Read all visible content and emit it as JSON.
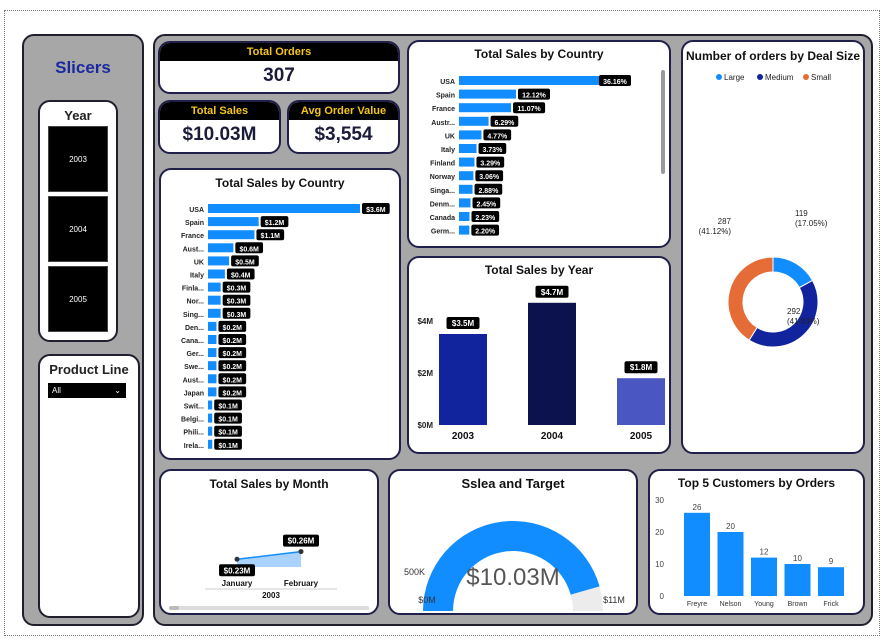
{
  "slicers": {
    "title": "Slicers",
    "year": {
      "title": "Year",
      "options": [
        "2003",
        "2004",
        "2005"
      ]
    },
    "product_line": {
      "title": "Product Line",
      "selected": "All"
    }
  },
  "kpis": {
    "total_orders": {
      "label": "Total Orders",
      "value": "307"
    },
    "total_sales": {
      "label": "Total Sales",
      "value": "$10.03M"
    },
    "avg_order_value": {
      "label": "Avg Order Value",
      "value": "$3,554"
    }
  },
  "colors": {
    "bar_blue": "#118dff",
    "navy": "#12239e",
    "dark_navy": "#0b124d",
    "orange": "#e66c37",
    "kpi_gold": "#f5c518"
  },
  "chart_data": [
    {
      "id": "sales_by_country_value",
      "type": "bar",
      "orientation": "horizontal",
      "title": "Total Sales by Country",
      "categories": [
        "USA",
        "Spain",
        "France",
        "Aust...",
        "UK",
        "Italy",
        "Finla...",
        "Nor...",
        "Sing...",
        "Den...",
        "Cana...",
        "Ger...",
        "Swe...",
        "Aust...",
        "Japan",
        "Swit...",
        "Belgi...",
        "Phili...",
        "Irela..."
      ],
      "values": [
        3.6,
        1.2,
        1.1,
        0.6,
        0.5,
        0.4,
        0.3,
        0.3,
        0.3,
        0.2,
        0.2,
        0.2,
        0.2,
        0.2,
        0.2,
        0.1,
        0.1,
        0.1,
        0.1
      ],
      "labels": [
        "$3.6M",
        "$1.2M",
        "$1.1M",
        "$0.6M",
        "$0.5M",
        "$0.4M",
        "$0.3M",
        "$0.3M",
        "$0.3M",
        "$0.2M",
        "$0.2M",
        "$0.2M",
        "$0.2M",
        "$0.2M",
        "$0.2M",
        "$0.1M",
        "$0.1M",
        "$0.1M",
        "$0.1M"
      ]
    },
    {
      "id": "sales_by_country_pct",
      "type": "bar",
      "orientation": "horizontal",
      "title": "Total Sales by Country",
      "categories": [
        "USA",
        "Spain",
        "France",
        "Austr...",
        "UK",
        "Italy",
        "Finland",
        "Norway",
        "Singa...",
        "Denm...",
        "Canada",
        "Germ..."
      ],
      "values": [
        36.16,
        12.12,
        11.07,
        6.29,
        4.77,
        3.73,
        3.29,
        3.06,
        2.88,
        2.45,
        2.23,
        2.2
      ],
      "labels": [
        "36.16%",
        "12.12%",
        "11.07%",
        "6.29%",
        "4.77%",
        "3.73%",
        "3.29%",
        "3.06%",
        "2.88%",
        "2.45%",
        "2.23%",
        "2.20%"
      ]
    },
    {
      "id": "deal_size",
      "type": "pie",
      "title": "Number of orders by Deal Size",
      "legend": [
        "Large",
        "Medium",
        "Small"
      ],
      "values": [
        119,
        292,
        287
      ],
      "labels": [
        "119\n(17.05%)",
        "292\n(41.83%)",
        "287\n(41.12%)"
      ],
      "legend_position": "top"
    },
    {
      "id": "sales_by_year",
      "type": "bar",
      "title": "Total Sales by Year",
      "categories": [
        "2003",
        "2004",
        "2005"
      ],
      "values": [
        3.5,
        4.7,
        1.8
      ],
      "labels": [
        "$3.5M",
        "$4.7M",
        "$1.8M"
      ],
      "yticks": [
        "$0M",
        "$2M",
        "$4M"
      ],
      "ylim": [
        0,
        5
      ]
    },
    {
      "id": "sales_by_month",
      "type": "area",
      "title": "Total Sales by Month",
      "categories": [
        "January",
        "February"
      ],
      "values": [
        0.23,
        0.26
      ],
      "labels": [
        "$0.23M",
        "$0.26M"
      ],
      "xgroup": "2003"
    },
    {
      "id": "sales_target",
      "type": "gauge",
      "title": "Sslea and Target",
      "value": 10.03,
      "min": 0,
      "max": 11,
      "value_label": "$10.03M",
      "min_label": "$0M",
      "max_label": "$11M",
      "side_label": "500K"
    },
    {
      "id": "top_customers",
      "type": "bar",
      "title": "Top 5 Customers by Orders",
      "categories": [
        "Freyre",
        "Nelson",
        "Young",
        "Brown",
        "Frick"
      ],
      "values": [
        26,
        20,
        12,
        10,
        9
      ],
      "yticks": [
        "0",
        "10",
        "20",
        "30"
      ],
      "ylim": [
        0,
        30
      ]
    }
  ]
}
